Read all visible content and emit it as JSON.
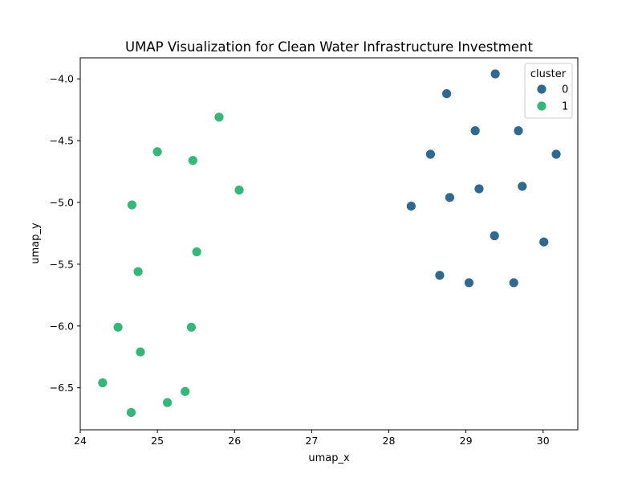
{
  "chart_data": {
    "type": "scatter",
    "title": "UMAP Visualization for Clean Water Infrastructure Investment",
    "xlabel": "umap_x",
    "ylabel": "umap_y",
    "xlim": [
      24.0,
      30.45
    ],
    "ylim": [
      -6.84,
      -3.83
    ],
    "xticks": [
      24,
      25,
      26,
      27,
      28,
      29,
      30
    ],
    "yticks": [
      -6.5,
      -6.0,
      -5.5,
      -5.0,
      -4.5,
      -4.0
    ],
    "grid": false,
    "legend": {
      "title": "cluster",
      "placement": "top-right"
    },
    "series": [
      {
        "name": "0",
        "color": "#30688e",
        "points": [
          [
            29.38,
            -3.96
          ],
          [
            28.75,
            -4.12
          ],
          [
            29.12,
            -4.42
          ],
          [
            29.68,
            -4.42
          ],
          [
            28.54,
            -4.61
          ],
          [
            30.17,
            -4.61
          ],
          [
            29.73,
            -4.87
          ],
          [
            29.17,
            -4.89
          ],
          [
            28.79,
            -4.96
          ],
          [
            28.29,
            -5.03
          ],
          [
            29.37,
            -5.27
          ],
          [
            30.01,
            -5.32
          ],
          [
            28.66,
            -5.59
          ],
          [
            29.04,
            -5.65
          ],
          [
            29.62,
            -5.65
          ]
        ]
      },
      {
        "name": "1",
        "color": "#35b779",
        "points": [
          [
            25.8,
            -4.31
          ],
          [
            25.0,
            -4.59
          ],
          [
            25.46,
            -4.66
          ],
          [
            26.06,
            -4.9
          ],
          [
            24.67,
            -5.02
          ],
          [
            25.51,
            -5.4
          ],
          [
            24.75,
            -5.56
          ],
          [
            24.49,
            -6.01
          ],
          [
            25.44,
            -6.01
          ],
          [
            24.78,
            -6.21
          ],
          [
            24.29,
            -6.46
          ],
          [
            25.36,
            -6.53
          ],
          [
            25.13,
            -6.62
          ],
          [
            24.66,
            -6.7
          ]
        ]
      }
    ]
  }
}
